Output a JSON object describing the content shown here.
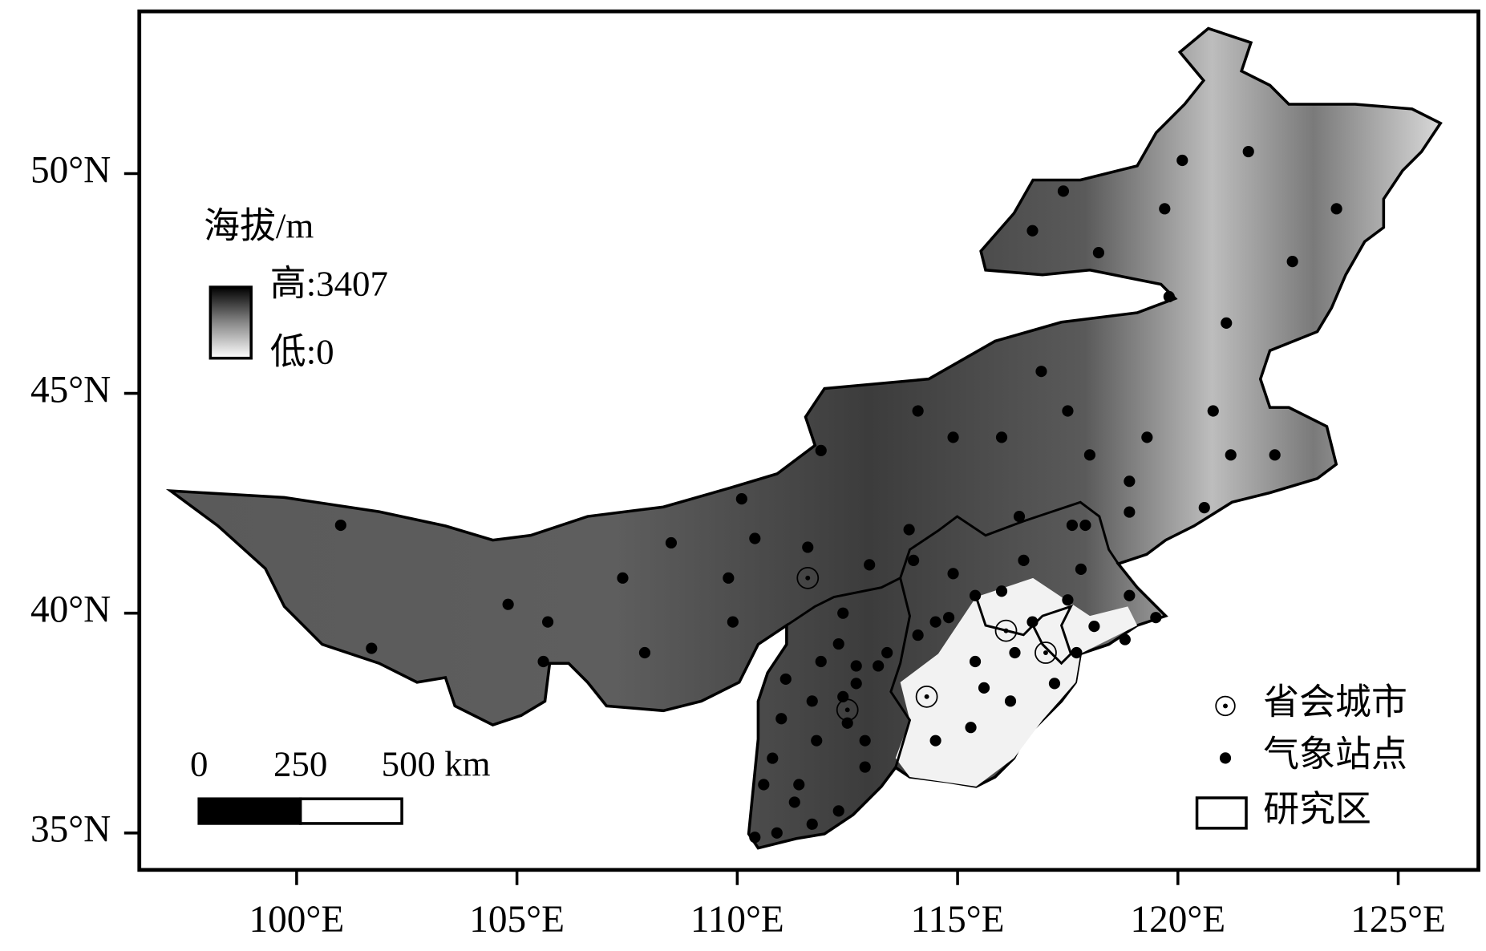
{
  "map": {
    "xlim": [
      96.43,
      126.82
    ],
    "ylim": [
      34.16,
      53.69
    ],
    "xticks": [
      {
        "value": 100,
        "label": "100°E"
      },
      {
        "value": 105,
        "label": "105°E"
      },
      {
        "value": 110,
        "label": "110°E"
      },
      {
        "value": 115,
        "label": "115°E"
      },
      {
        "value": 120,
        "label": "120°E"
      },
      {
        "value": 125,
        "label": "125°E"
      }
    ],
    "yticks": [
      {
        "value": 35,
        "label": "35°N"
      },
      {
        "value": 40,
        "label": "40°N"
      },
      {
        "value": 45,
        "label": "45°N"
      },
      {
        "value": 50,
        "label": "50°N"
      }
    ],
    "stations": {
      "lon": [
        117.4,
        116.7,
        118.2,
        119.7,
        120.1,
        121.6,
        123.6,
        122.6,
        119.8,
        121.1,
        116.9,
        117.5,
        120.8,
        119.3,
        121.2,
        122.2,
        118.0,
        118.9,
        120.6,
        118.9,
        117.6,
        116.4,
        114.1,
        114.9,
        116.0,
        111.9,
        110.1,
        110.4,
        111.6,
        108.5,
        107.4,
        109.8,
        113.0,
        113.9,
        114.0,
        114.9,
        101.0,
        104.8,
        105.7,
        105.6,
        107.9,
        109.9,
        101.7,
        116.5,
        117.9,
        117.8,
        118.9,
        117.5,
        116.0,
        115.4,
        114.8,
        116.7,
        118.1,
        118.8,
        119.5,
        117.7,
        117.2,
        115.4,
        115.6,
        116.2,
        116.3,
        114.5,
        114.1,
        113.4,
        113.2,
        112.4,
        112.3,
        111.9,
        112.7,
        112.7,
        112.4,
        111.7,
        111.1,
        111.0,
        110.8,
        110.6,
        111.4,
        111.3,
        110.9,
        110.4,
        111.7,
        112.3,
        112.5,
        112.9,
        112.9,
        111.8,
        114.5,
        115.3
      ],
      "lat": [
        49.6,
        48.7,
        48.2,
        49.2,
        50.3,
        50.5,
        49.2,
        48.0,
        47.2,
        46.6,
        45.5,
        44.6,
        44.6,
        44.0,
        43.6,
        43.6,
        43.6,
        43.0,
        42.4,
        42.3,
        42.0,
        42.2,
        44.6,
        44.0,
        44.0,
        43.7,
        42.6,
        41.7,
        41.5,
        41.6,
        40.8,
        40.8,
        41.1,
        41.9,
        41.2,
        40.9,
        42.0,
        40.2,
        39.8,
        38.9,
        39.1,
        39.8,
        39.2,
        41.2,
        42.0,
        41.0,
        40.4,
        40.3,
        40.5,
        40.4,
        39.9,
        39.8,
        39.7,
        39.4,
        39.9,
        39.1,
        38.4,
        38.9,
        38.3,
        38.0,
        39.1,
        39.8,
        39.5,
        39.1,
        38.8,
        40.0,
        39.3,
        38.9,
        38.8,
        38.4,
        38.1,
        38.0,
        38.5,
        37.6,
        36.7,
        36.1,
        36.1,
        35.7,
        35.0,
        34.9,
        35.2,
        35.5,
        37.5,
        37.1,
        36.5,
        37.1,
        37.1,
        37.4
      ]
    },
    "capitals": {
      "lon": [
        111.6,
        112.5,
        114.3,
        116.1,
        117.0
      ],
      "lat": [
        40.8,
        37.8,
        38.1,
        39.6,
        39.1
      ]
    }
  },
  "legend": {
    "elevation": {
      "title": "海拔/m",
      "high": {
        "value": 3407,
        "label": "高:3407"
      },
      "low": {
        "value": 0,
        "label": "低:0"
      }
    },
    "symbols": {
      "capital": "省会城市",
      "station": "气象站点",
      "region": "研究区"
    },
    "scale": {
      "ticks": [
        {
          "value": 0,
          "label": "0"
        },
        {
          "value": 250,
          "label": "250"
        },
        {
          "value": 500,
          "label": "500 km"
        }
      ]
    }
  }
}
